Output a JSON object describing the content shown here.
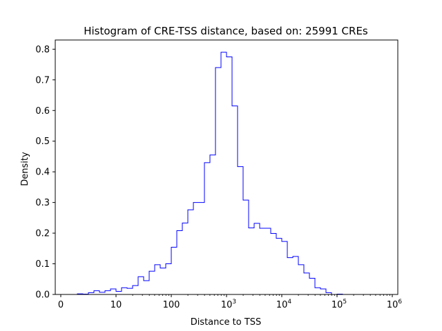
{
  "chart_data": {
    "type": "histogram",
    "title": "Histogram of CRE-TSS distance, based on: 25991 CREs",
    "xlabel": "Distance to TSS",
    "ylabel": "Density",
    "x_scale": "symlog",
    "xlim": [
      -0.1,
      6.1
    ],
    "ylim": [
      0,
      0.83
    ],
    "x_ticks": [
      {
        "value": 0,
        "label": "0"
      },
      {
        "value": 1,
        "label": "10"
      },
      {
        "value": 2,
        "label": "100"
      },
      {
        "value": 3,
        "label": "10",
        "exp": "3"
      },
      {
        "value": 4,
        "label": "10",
        "exp": "4"
      },
      {
        "value": 5,
        "label": "10",
        "exp": "5"
      },
      {
        "value": 6,
        "label": "10",
        "exp": "6"
      }
    ],
    "y_ticks": [
      {
        "value": 0.0,
        "label": "0.0"
      },
      {
        "value": 0.1,
        "label": "0.1"
      },
      {
        "value": 0.2,
        "label": "0.2"
      },
      {
        "value": 0.3,
        "label": "0.3"
      },
      {
        "value": 0.4,
        "label": "0.4"
      },
      {
        "value": 0.5,
        "label": "0.5"
      },
      {
        "value": 0.6,
        "label": "0.6"
      },
      {
        "value": 0.7,
        "label": "0.7"
      },
      {
        "value": 0.8,
        "label": "0.8"
      }
    ],
    "line_color": "#0000ff",
    "bin_width": 0.1,
    "bins_start": 0.0,
    "values": [
      0,
      0,
      0,
      0.002,
      0.001,
      0.006,
      0.012,
      0.007,
      0.012,
      0.018,
      0.01,
      0.022,
      0.02,
      0.029,
      0.058,
      0.045,
      0.076,
      0.097,
      0.086,
      0.1,
      0.154,
      0.208,
      0.233,
      0.276,
      0.3,
      0.3,
      0.43,
      0.455,
      0.74,
      0.79,
      0.775,
      0.615,
      0.417,
      0.308,
      0.217,
      0.232,
      0.216,
      0.216,
      0.199,
      0.183,
      0.173,
      0.12,
      0.124,
      0.097,
      0.07,
      0.053,
      0.022,
      0.018,
      0.006,
      0,
      0.001
    ]
  }
}
